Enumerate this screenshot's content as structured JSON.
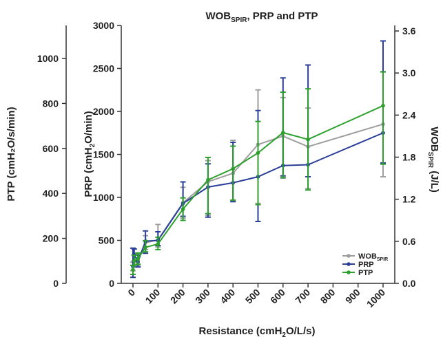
{
  "chart_data": {
    "type": "line",
    "title": {
      "main": "WOB",
      "sub": "SPIR",
      "rest": ", PRP and PTP"
    },
    "xlabel": {
      "main": "Resistance (cmH",
      "sub": "2",
      "rest": "O/L/s)"
    },
    "ylabel_ptp": "PTP (cmH₂O/s/min)",
    "ylabel_prp": {
      "main": "PRP (cmH",
      "sub": "2",
      "rest": "O/min)"
    },
    "ylabel_wob": {
      "main": "WOB",
      "sub": "SPIR",
      "rest": " (J/L)"
    },
    "x": [
      0,
      5,
      20,
      50,
      100,
      200,
      300,
      400,
      500,
      600,
      700,
      1000
    ],
    "x_tick_labels": [
      "0",
      "100",
      "200",
      "300",
      "400",
      "500",
      "600",
      "700",
      "800",
      "900",
      "1000"
    ],
    "x_ticks": [
      0,
      100,
      200,
      300,
      400,
      500,
      600,
      700,
      800,
      900,
      1000
    ],
    "axes": {
      "prp": {
        "range": [
          0,
          3000
        ],
        "ticks": [
          0,
          500,
          1000,
          1500,
          2000,
          2500,
          3000
        ],
        "tick_labels": [
          "0",
          "500",
          "1000",
          "1500",
          "2000",
          "2500",
          "3000"
        ]
      },
      "ptp": {
        "range": [
          0,
          1150
        ],
        "ticks": [
          0,
          200,
          400,
          600,
          800,
          1000
        ],
        "tick_labels": [
          "0",
          "200",
          "400",
          "600",
          "800",
          "1000"
        ]
      },
      "wob": {
        "range": [
          0,
          3.7
        ],
        "ticks": [
          0,
          0.6,
          1.2,
          1.8,
          2.4,
          3.0,
          3.6
        ],
        "tick_labels": [
          "0.0",
          "0.6",
          "1.2",
          "1.8",
          "2.4",
          "3.0",
          "3.6"
        ]
      }
    },
    "x_positions_note_free": true,
    "series": [
      {
        "name": {
          "main": "WOB",
          "sub": "SPIR"
        },
        "axis": "wob",
        "color": "#9e9e9e",
        "values": [
          0.24,
          0.32,
          0.34,
          0.58,
          0.62,
          1.15,
          1.45,
          1.57,
          1.98,
          2.1,
          1.95,
          2.27
        ],
        "err_low": [
          0.06,
          0.09,
          0.09,
          0.1,
          0.1,
          0.22,
          0.48,
          0.4,
          0.84,
          0.6,
          0.6,
          0.75
        ],
        "err_high": [
          0.06,
          0.09,
          0.09,
          0.1,
          0.22,
          0.22,
          0.3,
          0.47,
          0.78,
          0.55,
          0.55,
          0.75
        ]
      },
      {
        "name": {
          "main": "PRP",
          "sub": ""
        },
        "axis": "prp",
        "color": "#2b3f9a",
        "values": [
          200,
          330,
          250,
          490,
          500,
          930,
          1120,
          1170,
          1240,
          1370,
          1380,
          1750
        ],
        "err_low": [
          130,
          70,
          60,
          140,
          60,
          150,
          350,
          220,
          520,
          120,
          140,
          350
        ],
        "err_high": [
          210,
          70,
          80,
          120,
          100,
          250,
          270,
          470,
          770,
          1020,
          1160,
          1070
        ]
      },
      {
        "name": {
          "main": "PTP",
          "sub": ""
        },
        "axis": "ptp",
        "color": "#2ca02c",
        "values": [
          60,
          100,
          110,
          160,
          175,
          330,
          460,
          510,
          580,
          670,
          640,
          790
        ],
        "err_low": [
          20,
          20,
          25,
          20,
          25,
          50,
          150,
          140,
          230,
          200,
          225,
          260
        ],
        "err_high": [
          20,
          25,
          25,
          30,
          30,
          50,
          100,
          100,
          140,
          180,
          225,
          150
        ]
      }
    ],
    "legend_position": "bottom-right"
  }
}
